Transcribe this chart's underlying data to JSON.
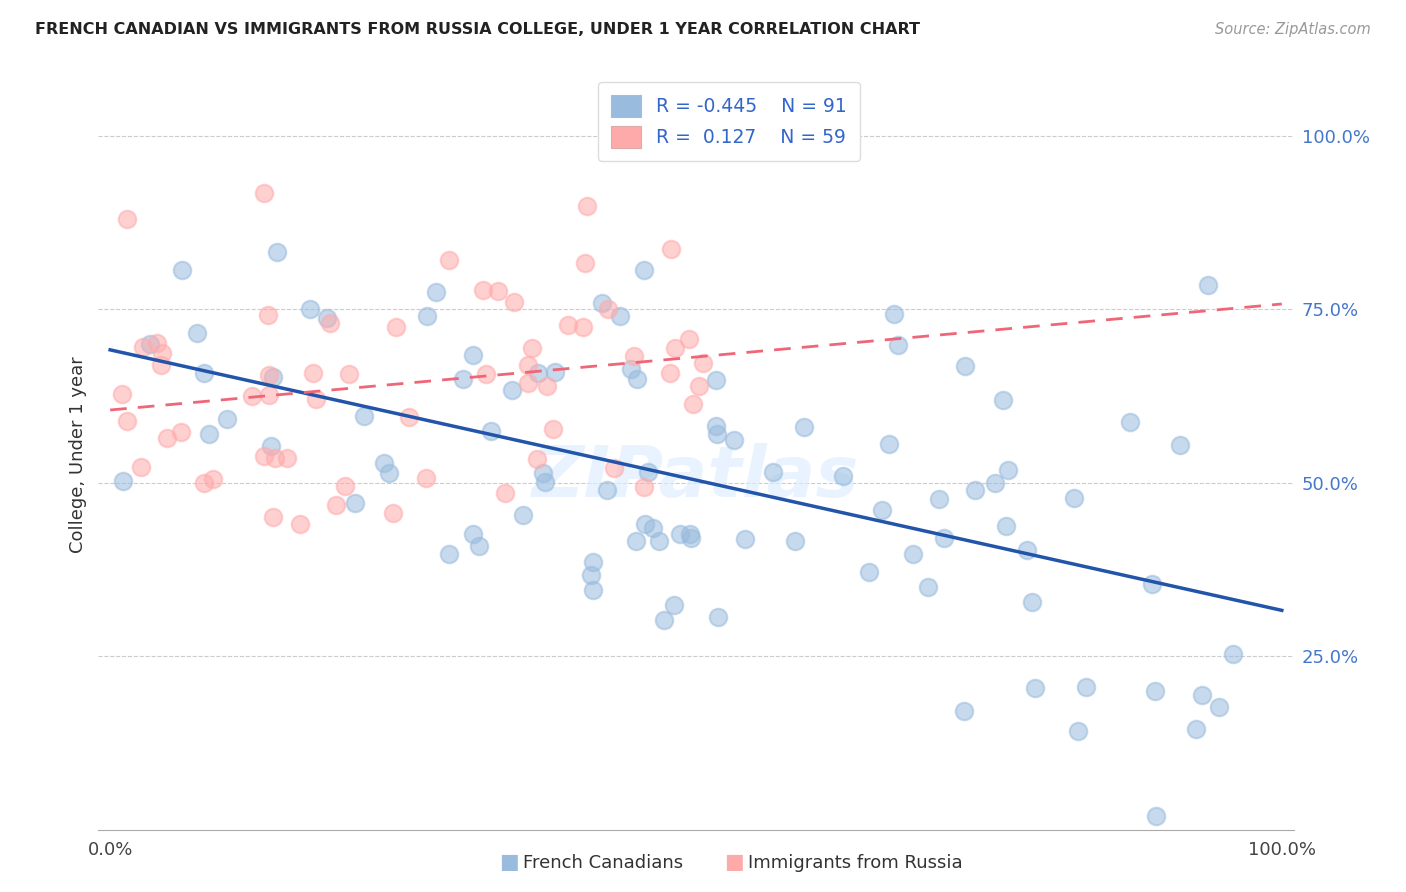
{
  "title": "FRENCH CANADIAN VS IMMIGRANTS FROM RUSSIA COLLEGE, UNDER 1 YEAR CORRELATION CHART",
  "source": "Source: ZipAtlas.com",
  "ylabel": "College, Under 1 year",
  "R1": -0.445,
  "N1": 91,
  "R2": 0.127,
  "N2": 59,
  "color_blue": "#99BBDD",
  "color_pink": "#FFAAAA",
  "color_blue_line": "#2255AA",
  "color_pink_line": "#EE6677",
  "bg": "#ffffff",
  "grid_color": "#cccccc",
  "ytick_labels": [
    "25.0%",
    "50.0%",
    "75.0%",
    "100.0%"
  ],
  "ytick_vals": [
    0.25,
    0.5,
    0.75,
    1.0
  ],
  "legend_blue_text": "R = -0.445    N = 91",
  "legend_pink_text": "R =  0.127    N = 59",
  "legend_label1": "French Canadians",
  "legend_label2": "Immigrants from Russia"
}
